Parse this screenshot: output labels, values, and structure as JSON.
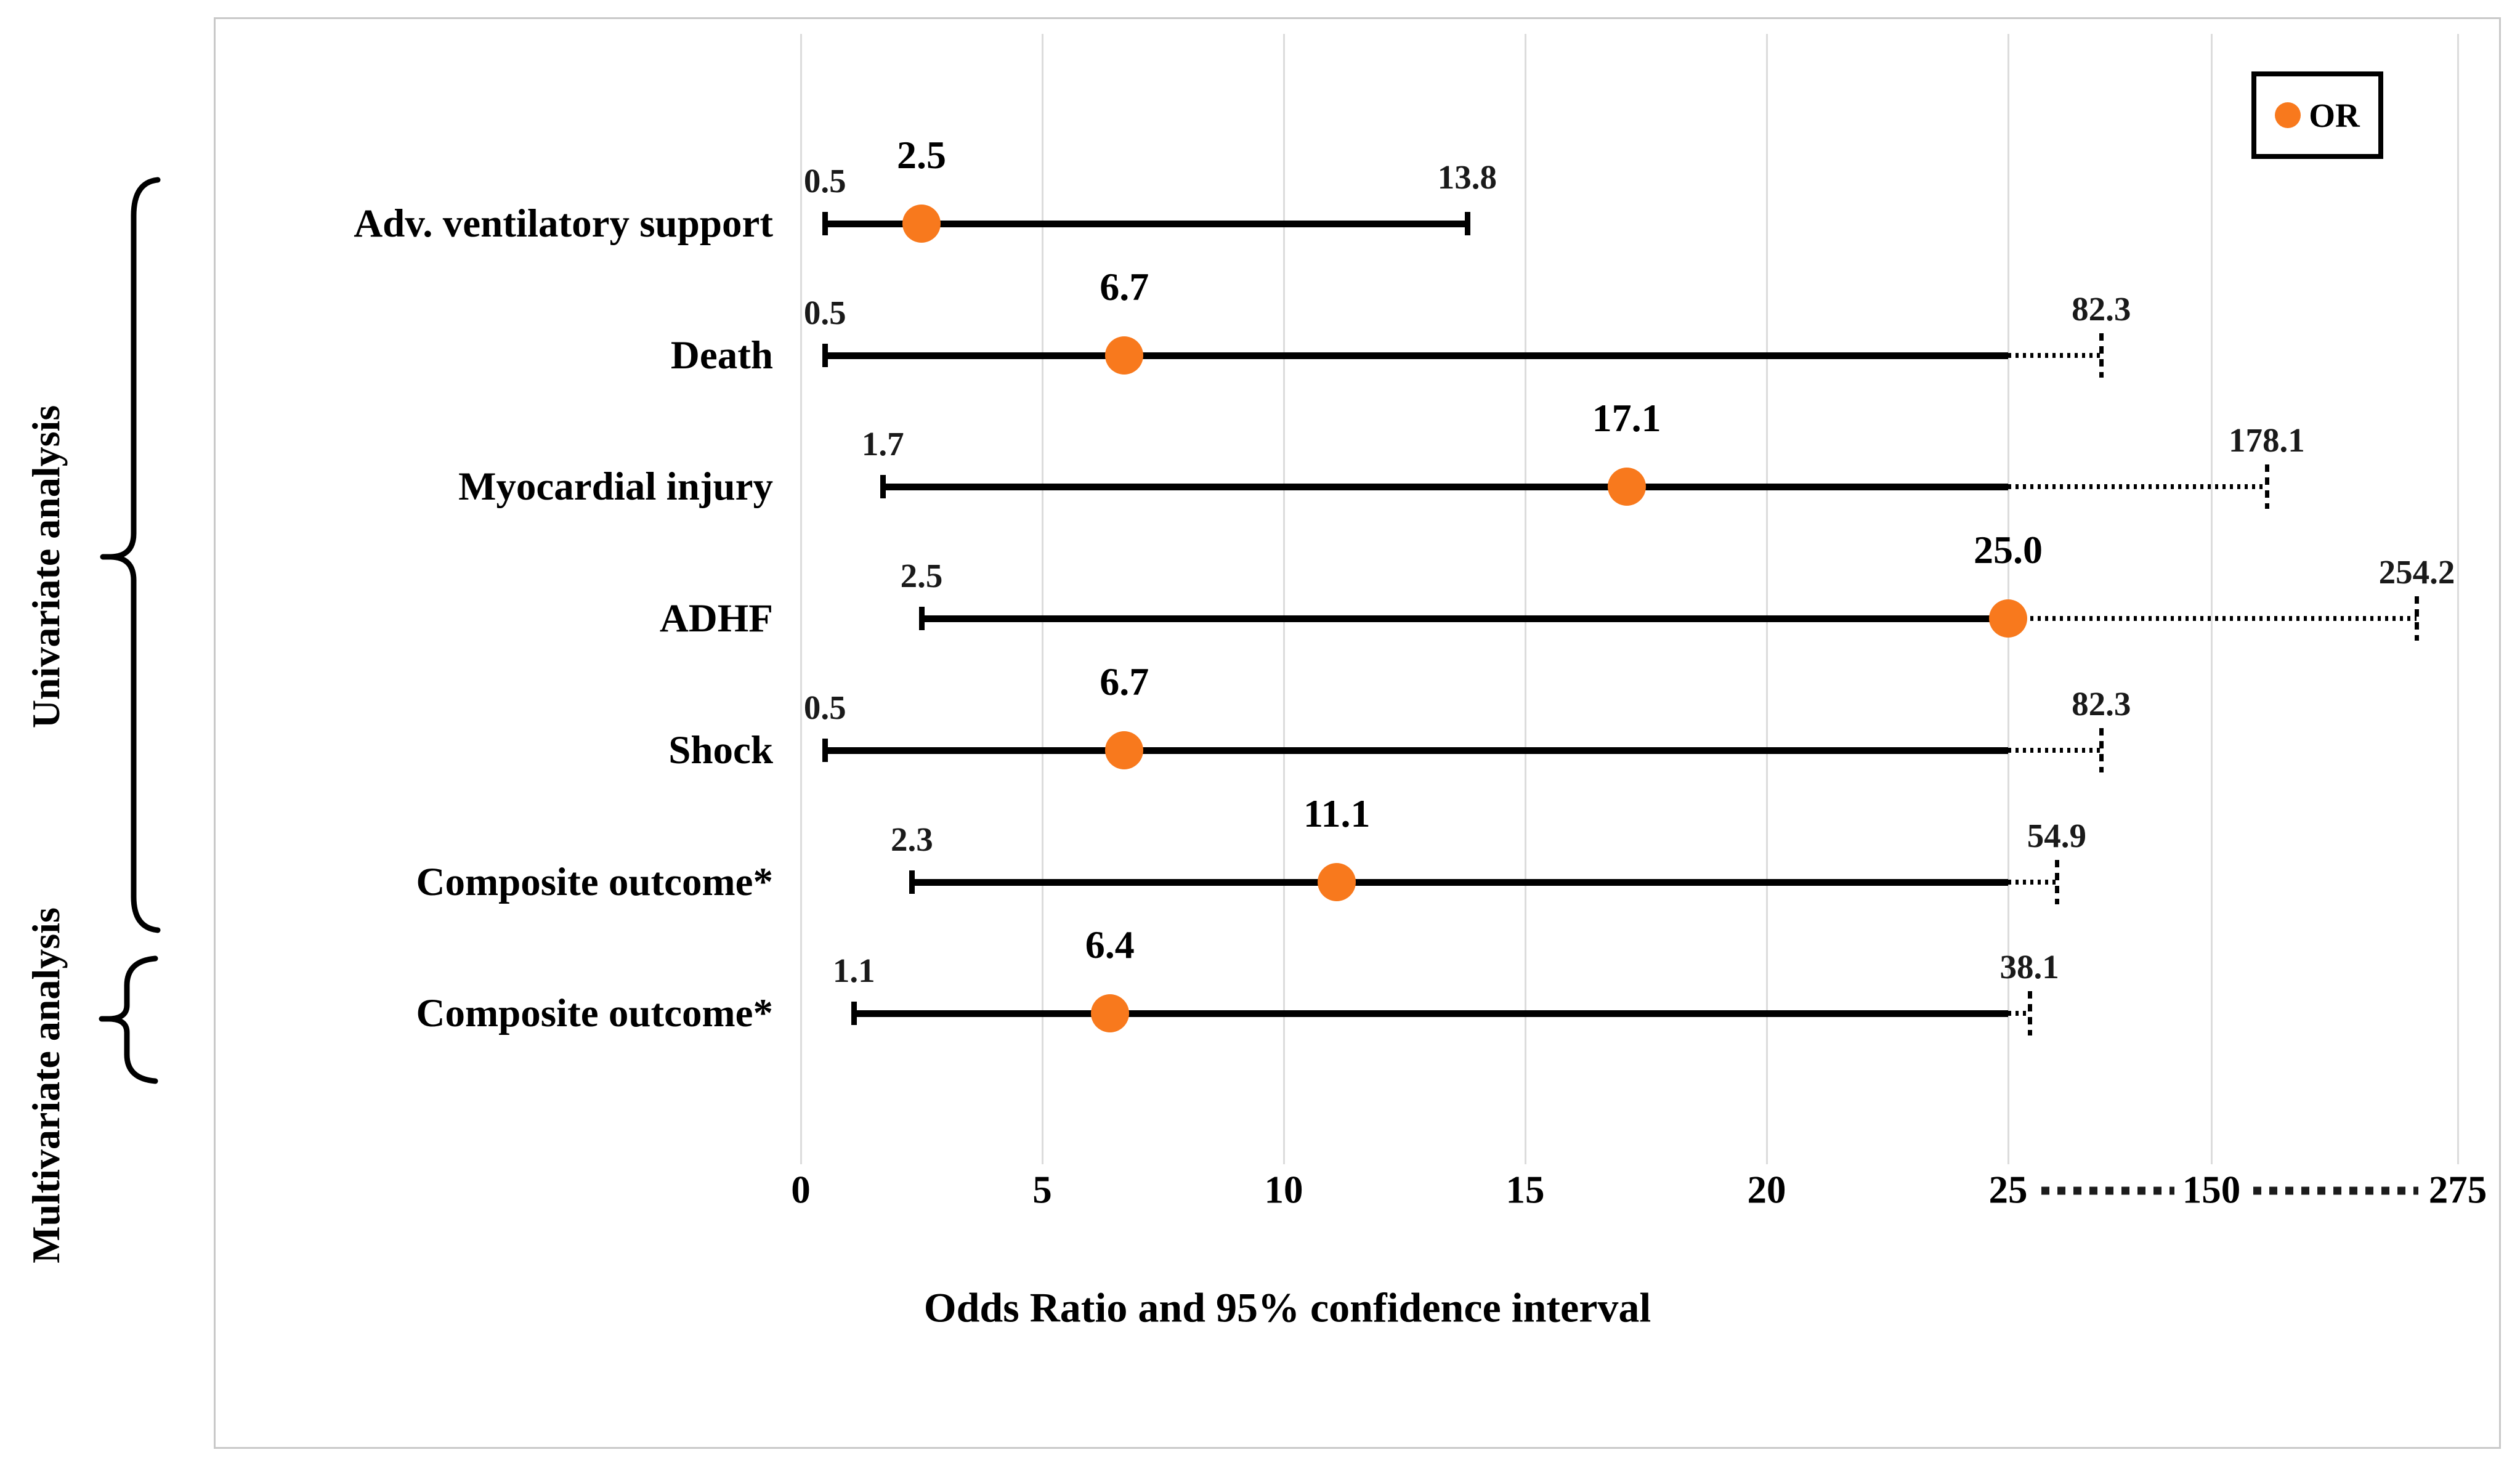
{
  "ui": {
    "legend": {
      "label": "OR"
    },
    "axis": {
      "title": "Odds Ratio and 95% confidence interval",
      "tick_labels": [
        "0",
        "5",
        "10",
        "15",
        "20",
        "25",
        "150",
        "275"
      ]
    },
    "groups": [
      {
        "label": "Univariate analysis"
      },
      {
        "label": "Multivariate analysis"
      }
    ]
  },
  "chart_data": {
    "type": "scatter",
    "subtype": "forest-plot-odds-ratios-with-95ci",
    "title": "",
    "xlabel": "Odds Ratio and 95% confidence interval",
    "ylabel": "",
    "categories": [
      "Adv. ventilatory support",
      "Death",
      "Myocardial injury",
      "ADHF",
      "Shock",
      "Composite outcome*",
      "Composite outcome*"
    ],
    "row_groups": [
      "Univariate analysis",
      "Univariate analysis",
      "Univariate analysis",
      "Univariate analysis",
      "Univariate analysis",
      "Univariate analysis",
      "Multivariate analysis"
    ],
    "series": [
      {
        "name": "OR",
        "values": [
          2.5,
          6.7,
          17.1,
          25.0,
          6.7,
          11.1,
          6.4
        ]
      },
      {
        "name": "CI95_lower",
        "values": [
          0.5,
          0.5,
          1.7,
          2.5,
          0.5,
          2.3,
          1.1
        ]
      },
      {
        "name": "CI95_upper",
        "values": [
          13.8,
          82.3,
          178.1,
          254.2,
          82.3,
          54.9,
          38.1
        ]
      }
    ],
    "point_labels": {
      "or": [
        "2.5",
        "6.7",
        "17.1",
        "25.0",
        "6.7",
        "11.1",
        "6.4"
      ],
      "lower": [
        "0.5",
        "0.5",
        "1.7",
        "2.5",
        "0.5",
        "2.3",
        "1.1"
      ],
      "upper": [
        "13.8",
        "82.3",
        "178.1",
        "254.2",
        "82.3",
        "54.9",
        "38.1"
      ]
    },
    "x_ticks": [
      0,
      5,
      10,
      15,
      20,
      25,
      150,
      275
    ],
    "axis_break": {
      "linear_until": 25,
      "compressed_ticks": [
        150,
        275
      ],
      "style": "dotted"
    },
    "legend": {
      "entries": [
        "OR"
      ],
      "position": "top-right",
      "marker": "circle"
    },
    "marker_color": "#F8791D",
    "gridline_color": "#dcdcdc",
    "grid": true
  }
}
